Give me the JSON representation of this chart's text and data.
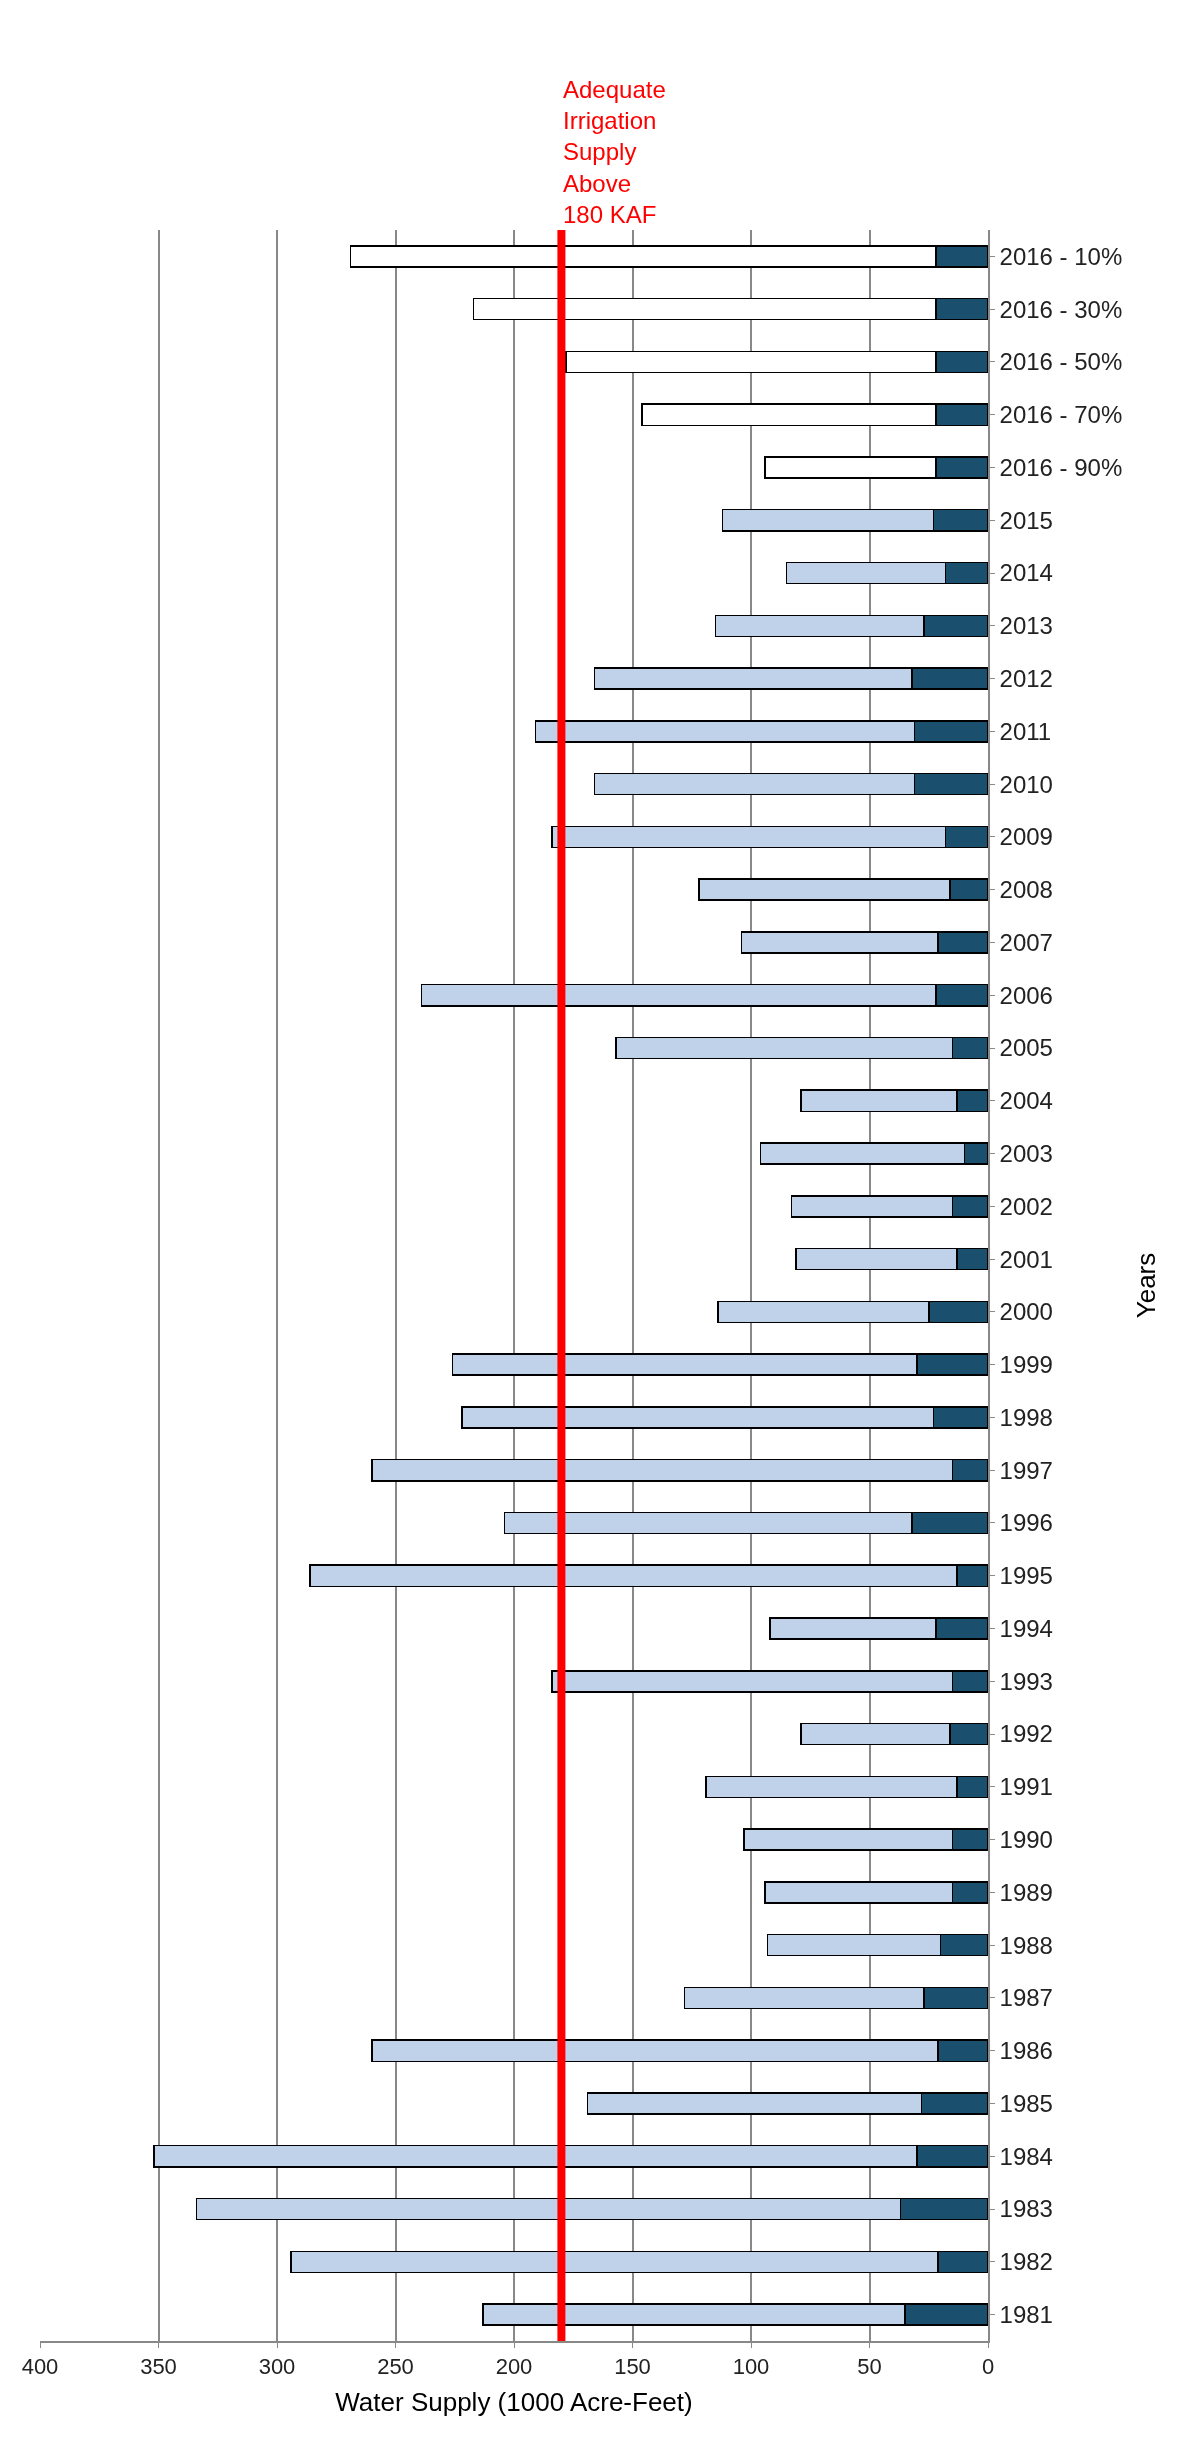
{
  "chart_data": {
    "type": "bar",
    "orientation": "horizontal",
    "stacked": true,
    "xlabel": "Water Supply (1000 Acre-Feet)",
    "ylabel": "Years",
    "categories": [
      "2016 - 10%",
      "2016 - 30%",
      "2016 - 50%",
      "2016 - 70%",
      "2016 - 90%",
      "2015",
      "2014",
      "2013",
      "2012",
      "2011",
      "2010",
      "2009",
      "2008",
      "2007",
      "2006",
      "2005",
      "2004",
      "2003",
      "2002",
      "2001",
      "2000",
      "1999",
      "1998",
      "1997",
      "1996",
      "1995",
      "1994",
      "1993",
      "1992",
      "1991",
      "1990",
      "1989",
      "1988",
      "1987",
      "1986",
      "1985",
      "1984",
      "1983",
      "1982",
      "1981"
    ],
    "series": [
      {
        "color": "#1b4f6e",
        "values": [
          22,
          22,
          22,
          22,
          22,
          23,
          18,
          27,
          32,
          31,
          31,
          18,
          16,
          21,
          22,
          15,
          13,
          10,
          15,
          13,
          25,
          30,
          23,
          15,
          32,
          13,
          22,
          15,
          16,
          13,
          15,
          15,
          20,
          27,
          21,
          28,
          30,
          37,
          21,
          35
        ]
      },
      {
        "colors": [
          "#ffffff",
          "#ffffff",
          "#ffffff",
          "#ffffff",
          "#ffffff",
          "#c0d1ea",
          "#c0d1ea",
          "#c0d1ea",
          "#c0d1ea",
          "#c0d1ea",
          "#c0d1ea",
          "#c0d1ea",
          "#c0d1ea",
          "#c0d1ea",
          "#c0d1ea",
          "#c0d1ea",
          "#c0d1ea",
          "#c0d1ea",
          "#c0d1ea",
          "#c0d1ea",
          "#c0d1ea",
          "#c0d1ea",
          "#c0d1ea",
          "#c0d1ea",
          "#c0d1ea",
          "#c0d1ea",
          "#c0d1ea",
          "#c0d1ea",
          "#c0d1ea",
          "#c0d1ea",
          "#c0d1ea",
          "#c0d1ea",
          "#c0d1ea",
          "#c0d1ea",
          "#c0d1ea",
          "#c0d1ea",
          "#c0d1ea",
          "#c0d1ea",
          "#c0d1ea",
          "#c0d1ea"
        ],
        "values": [
          247,
          195,
          156,
          124,
          72,
          89,
          67,
          88,
          134,
          160,
          135,
          166,
          106,
          83,
          217,
          142,
          66,
          86,
          68,
          68,
          89,
          196,
          199,
          245,
          172,
          273,
          70,
          169,
          63,
          106,
          88,
          79,
          73,
          101,
          239,
          141,
          322,
          297,
          273,
          178
        ]
      }
    ],
    "xlim": [
      400,
      0
    ],
    "xticks": [
      400,
      350,
      300,
      250,
      200,
      150,
      100,
      50,
      0
    ],
    "grid": "x",
    "ref_lines": [
      {
        "axis": "x",
        "value": 180,
        "label": "Adequate\nIrrigation\nSupply\nAbove\n180 KAF",
        "color": "#ff0000"
      }
    ]
  }
}
